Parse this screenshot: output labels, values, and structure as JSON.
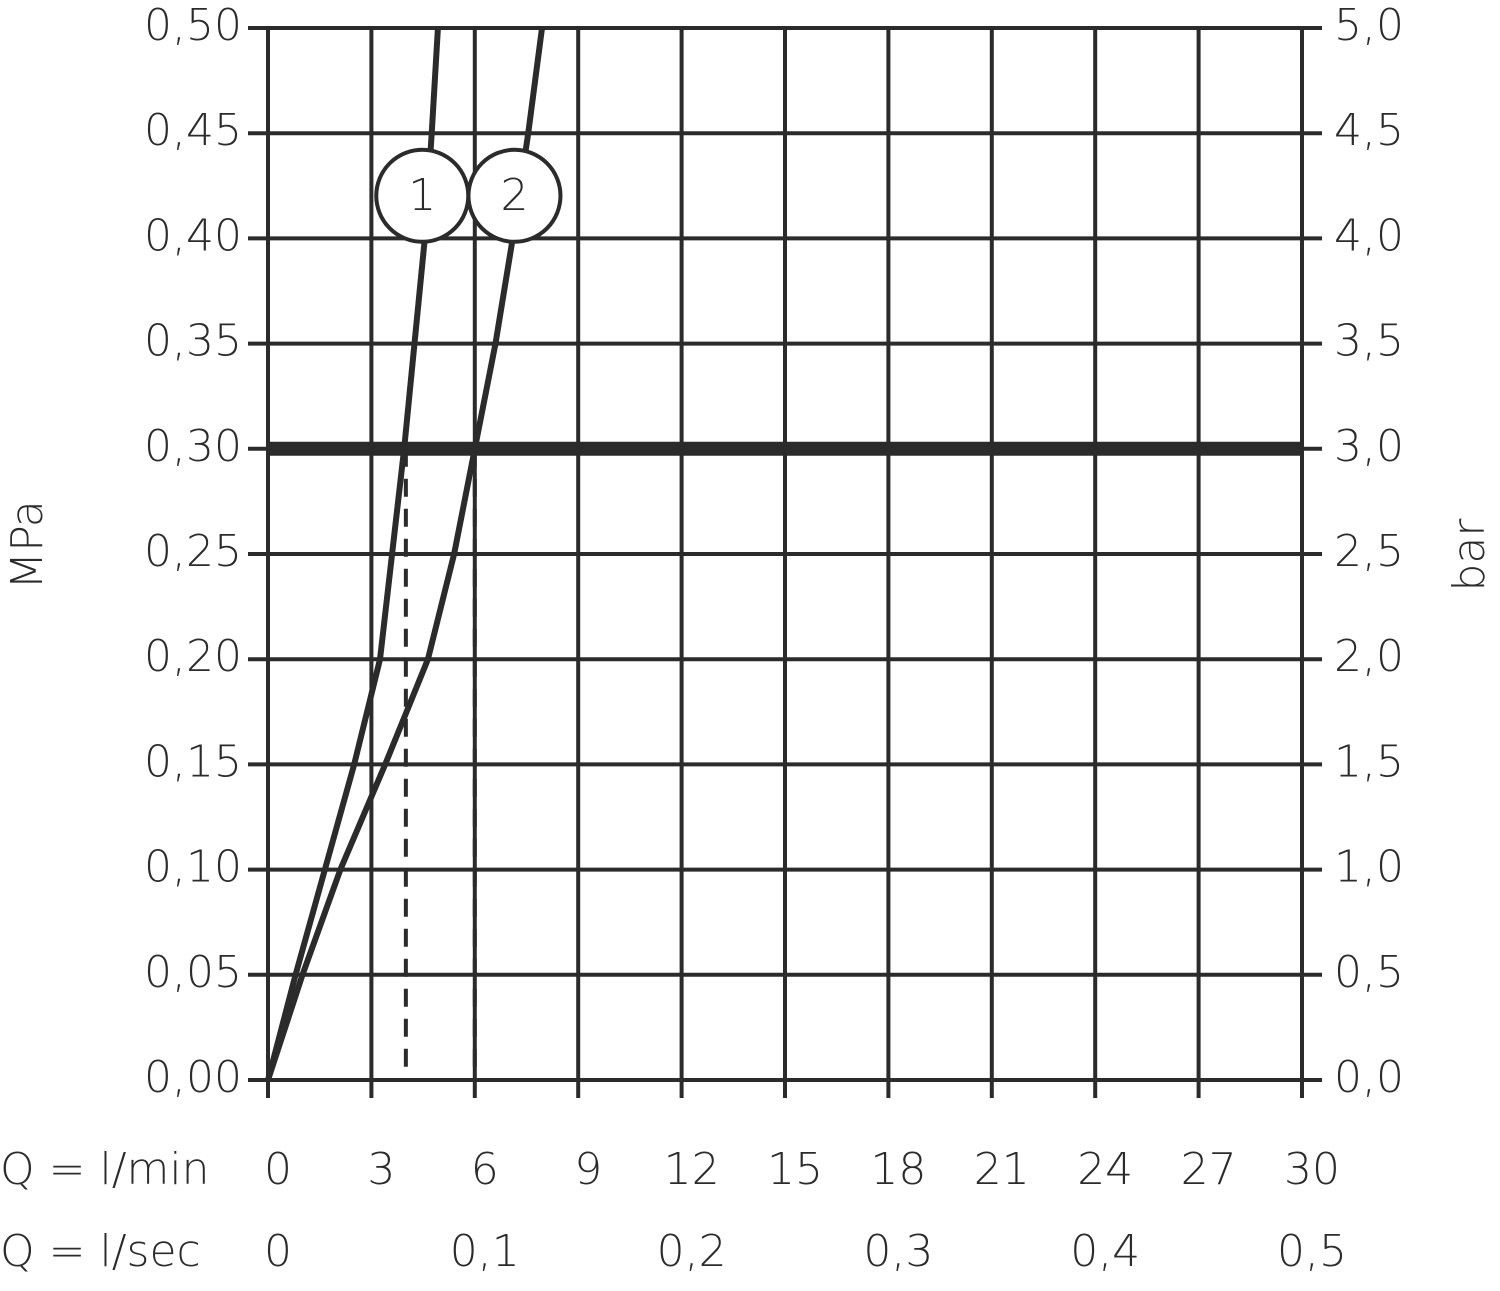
{
  "chart_data": {
    "type": "line",
    "y_label": "MPa",
    "y2_label": "bar",
    "x_label": "Q = l/min",
    "x2_label": "Q = l/sec",
    "xlim": [
      0,
      30
    ],
    "xticks": [
      0,
      3,
      6,
      9,
      12,
      15,
      18,
      21,
      24,
      27,
      30
    ],
    "x2lim": [
      0,
      0.5
    ],
    "x2ticks": [
      0,
      {
        "value": 0.1,
        "label": "0,1"
      },
      {
        "value": 0.2,
        "label": "0,2"
      },
      {
        "value": 0.3,
        "label": "0,3"
      },
      {
        "value": 0.4,
        "label": "0,4"
      },
      {
        "value": 0.5,
        "label": "0,5"
      }
    ],
    "ylim": [
      0,
      0.5
    ],
    "yticks": [
      {
        "value": 0,
        "label": "0,00"
      },
      {
        "value": 0.05,
        "label": "0,05"
      },
      {
        "value": 0.1,
        "label": "0,10"
      },
      {
        "value": 0.15,
        "label": "0,15"
      },
      {
        "value": 0.2,
        "label": "0,20"
      },
      {
        "value": 0.25,
        "label": "0,25"
      },
      {
        "value": 0.3,
        "label": "0,30"
      },
      {
        "value": 0.35,
        "label": "0,35"
      },
      {
        "value": 0.4,
        "label": "0,40"
      },
      {
        "value": 0.45,
        "label": "0,45"
      },
      {
        "value": 0.5,
        "label": "0,50"
      }
    ],
    "y2lim": [
      0,
      5
    ],
    "y2ticks": [
      {
        "value": 0,
        "label": "0,0"
      },
      {
        "value": 0.5,
        "label": "0,5"
      },
      {
        "value": 1,
        "label": "1,0"
      },
      {
        "value": 1.5,
        "label": "1,5"
      },
      {
        "value": 2,
        "label": "2,0"
      },
      {
        "value": 2.5,
        "label": "2,5"
      },
      {
        "value": 3,
        "label": "3,0"
      },
      {
        "value": 3.5,
        "label": "3,5"
      },
      {
        "value": 4,
        "label": "4,0"
      },
      {
        "value": 4.5,
        "label": "4,5"
      },
      {
        "value": 5,
        "label": "5,0"
      }
    ],
    "grid": true,
    "series": [
      {
        "name": "1",
        "color": "#2b2b2b",
        "x": [
          0,
          0.8,
          1.65,
          2.5,
          3.25,
          3.6,
          3.95,
          4.25,
          4.55,
          4.75,
          4.93
        ],
        "values": [
          0,
          0.05,
          0.1,
          0.15,
          0.2,
          0.25,
          0.3,
          0.35,
          0.4,
          0.45,
          0.5
        ]
      },
      {
        "name": "2",
        "color": "#2b2b2b",
        "x": [
          0,
          1.0,
          2.1,
          3.4,
          4.64,
          5.4,
          6.0,
          6.6,
          7.1,
          7.55,
          7.95
        ],
        "values": [
          0,
          0.05,
          0.1,
          0.15,
          0.2,
          0.25,
          0.3,
          0.35,
          0.4,
          0.45,
          0.5
        ]
      }
    ],
    "hlines": [
      0.3
    ],
    "vlines": [
      4,
      6
    ]
  }
}
